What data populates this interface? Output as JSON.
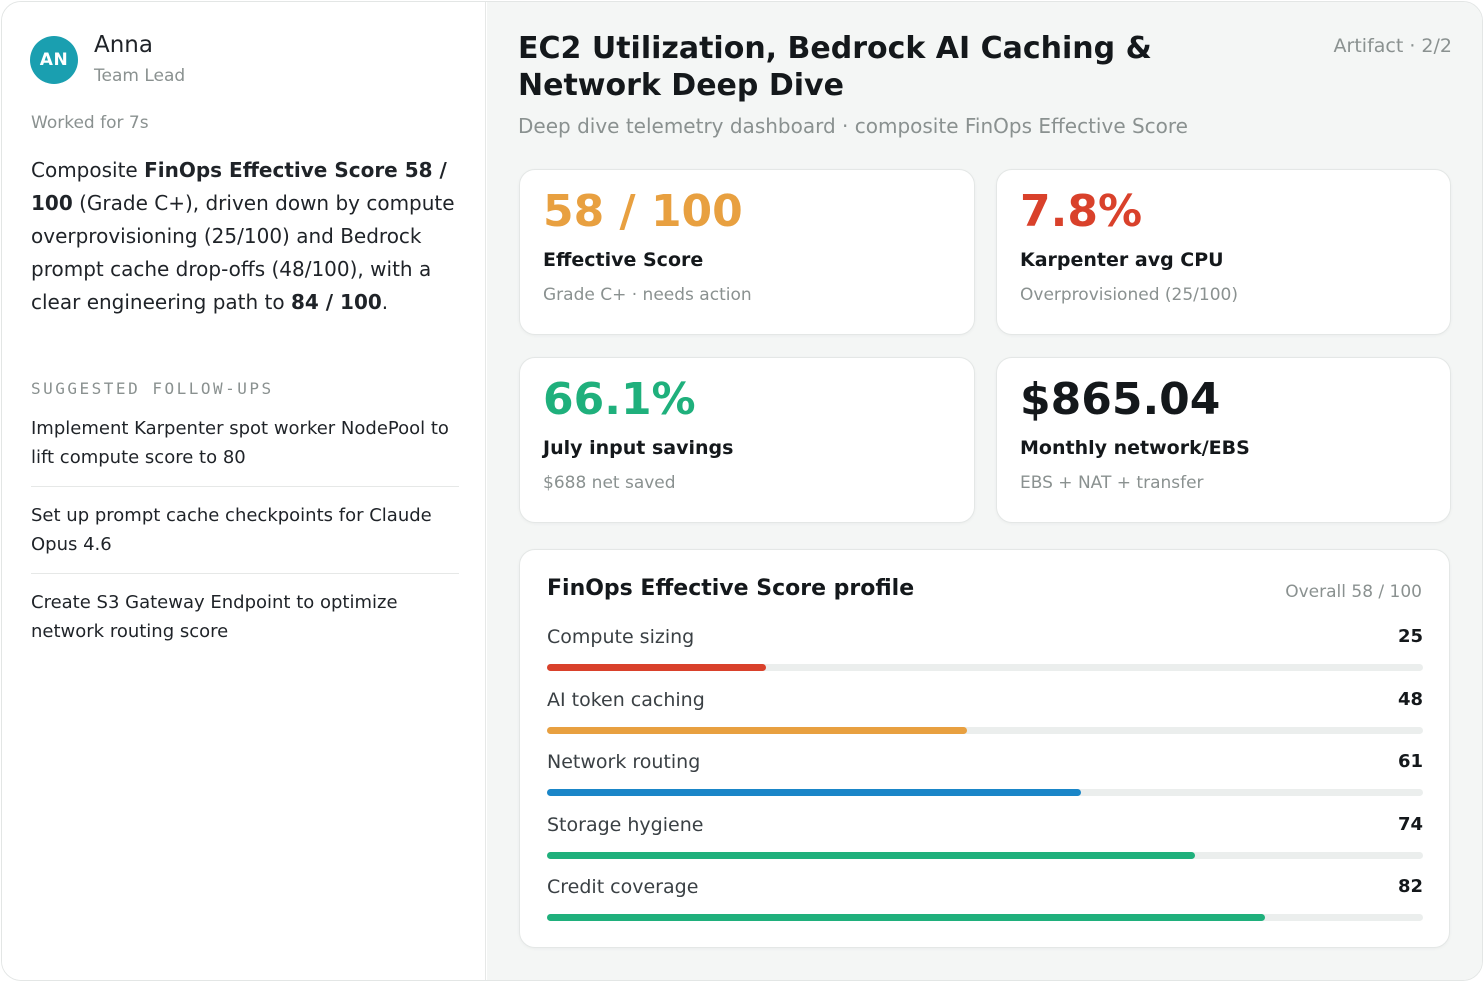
{
  "user": {
    "initials": "AN",
    "name": "Anna",
    "role": "Team Lead",
    "worked": "Worked for 7s"
  },
  "summary": {
    "t1": "Composite ",
    "b1": "FinOps Effective Score 58 / 100",
    "t2": " (Grade C+), driven down by compute overprovisioning (25/100) and Bedrock prompt cache drop-offs (48/100), with a clear engineering path to ",
    "b2": "84 / 100",
    "t3": "."
  },
  "followups": {
    "title": "SUGGESTED FOLLOW-UPS",
    "items": [
      "Implement Karpenter spot worker NodePool to lift compute score to 80",
      "Set up prompt cache checkpoints for Claude Opus 4.6",
      "Create S3 Gateway Endpoint to optimize network routing score"
    ]
  },
  "header": {
    "title": "EC2 Utilization, Bedrock AI Caching & Network Deep Dive",
    "artifact": "Artifact · 2/2",
    "subtitle": "Deep dive telemetry dashboard · composite FinOps Effective Score"
  },
  "kpis": [
    {
      "value": "58 / 100",
      "label": "Effective Score",
      "sub": "Grade C+ · needs action",
      "color": "#e8a040"
    },
    {
      "value": "7.8%",
      "label": "Karpenter avg CPU",
      "sub": "Overprovisioned (25/100)",
      "color": "#d9412b"
    },
    {
      "value": "66.1%",
      "label": "July input savings",
      "sub": "$688 net saved",
      "color": "#1fb07c"
    },
    {
      "value": "$865.04",
      "label": "Monthly network/EBS",
      "sub": "EBS + NAT + transfer",
      "color": "#14181b"
    }
  ],
  "profile": {
    "title": "FinOps Effective Score profile",
    "overall": "Overall 58 / 100",
    "max": 100,
    "bars": [
      {
        "label": "Compute sizing",
        "value": 25,
        "color": "#d9412b"
      },
      {
        "label": "AI token caching",
        "value": 48,
        "color": "#e8a040"
      },
      {
        "label": "Network routing",
        "value": 61,
        "color": "#1a86c8"
      },
      {
        "label": "Storage hygiene",
        "value": 74,
        "color": "#1fb07c"
      },
      {
        "label": "Credit coverage",
        "value": 82,
        "color": "#1fb07c"
      }
    ]
  }
}
